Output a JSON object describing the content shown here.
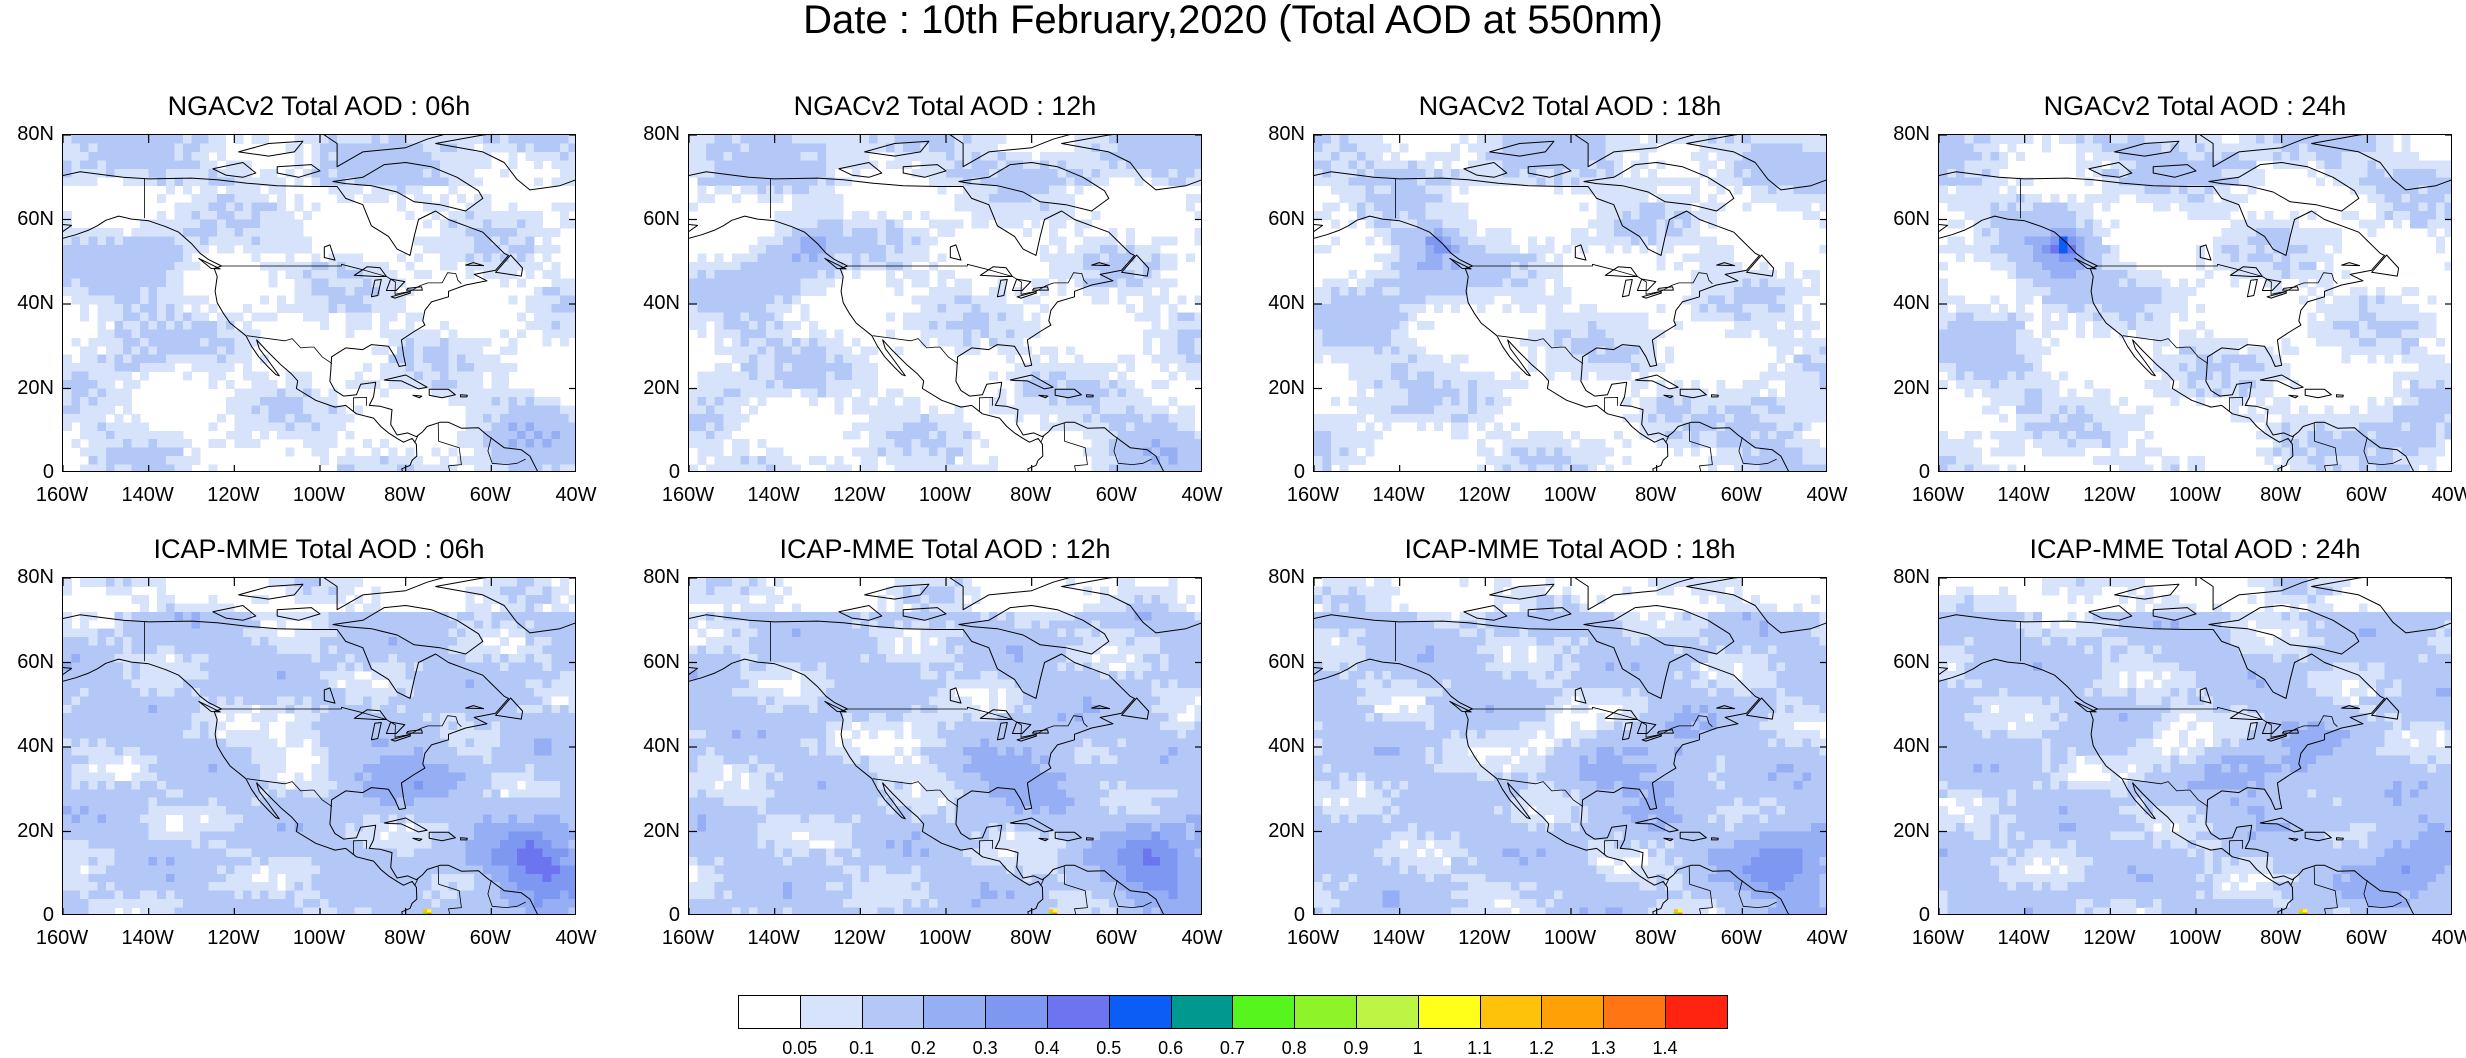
{
  "title": "Date : 10th February,2020 (Total AOD at 550nm)",
  "lat_ticks": [
    "80N",
    "60N",
    "40N",
    "20N",
    "0"
  ],
  "lon_ticks": [
    "160W",
    "140W",
    "120W",
    "100W",
    "80W",
    "60W",
    "40W"
  ],
  "panels": [
    {
      "title": "NGACv2 Total AOD : 06h",
      "model": "NGACv2",
      "hour": "06h"
    },
    {
      "title": "NGACv2 Total AOD : 12h",
      "model": "NGACv2",
      "hour": "12h"
    },
    {
      "title": "NGACv2 Total AOD : 18h",
      "model": "NGACv2",
      "hour": "18h"
    },
    {
      "title": "NGACv2 Total AOD : 24h",
      "model": "NGACv2",
      "hour": "24h"
    },
    {
      "title": "ICAP-MME Total AOD : 06h",
      "model": "ICAP-MME",
      "hour": "06h"
    },
    {
      "title": "ICAP-MME Total AOD : 12h",
      "model": "ICAP-MME",
      "hour": "12h"
    },
    {
      "title": "ICAP-MME Total AOD : 18h",
      "model": "ICAP-MME",
      "hour": "18h"
    },
    {
      "title": "ICAP-MME Total AOD : 24h",
      "model": "ICAP-MME",
      "hour": "24h"
    }
  ],
  "colorbar": {
    "colors": [
      "#ffffff",
      "#d7e3fb",
      "#b4c8f7",
      "#95aef4",
      "#7e97f1",
      "#6d74ef",
      "#0b5df5",
      "#009990",
      "#55f51d",
      "#8ff32a",
      "#bdf545",
      "#ffff1a",
      "#ffc20a",
      "#ffa106",
      "#ff7413",
      "#ff2410"
    ],
    "labels": [
      "0.05",
      "0.1",
      "0.2",
      "0.3",
      "0.4",
      "0.5",
      "0.6",
      "0.7",
      "0.8",
      "0.9",
      "1",
      "1.1",
      "1.2",
      "1.3",
      "1.4"
    ]
  }
}
